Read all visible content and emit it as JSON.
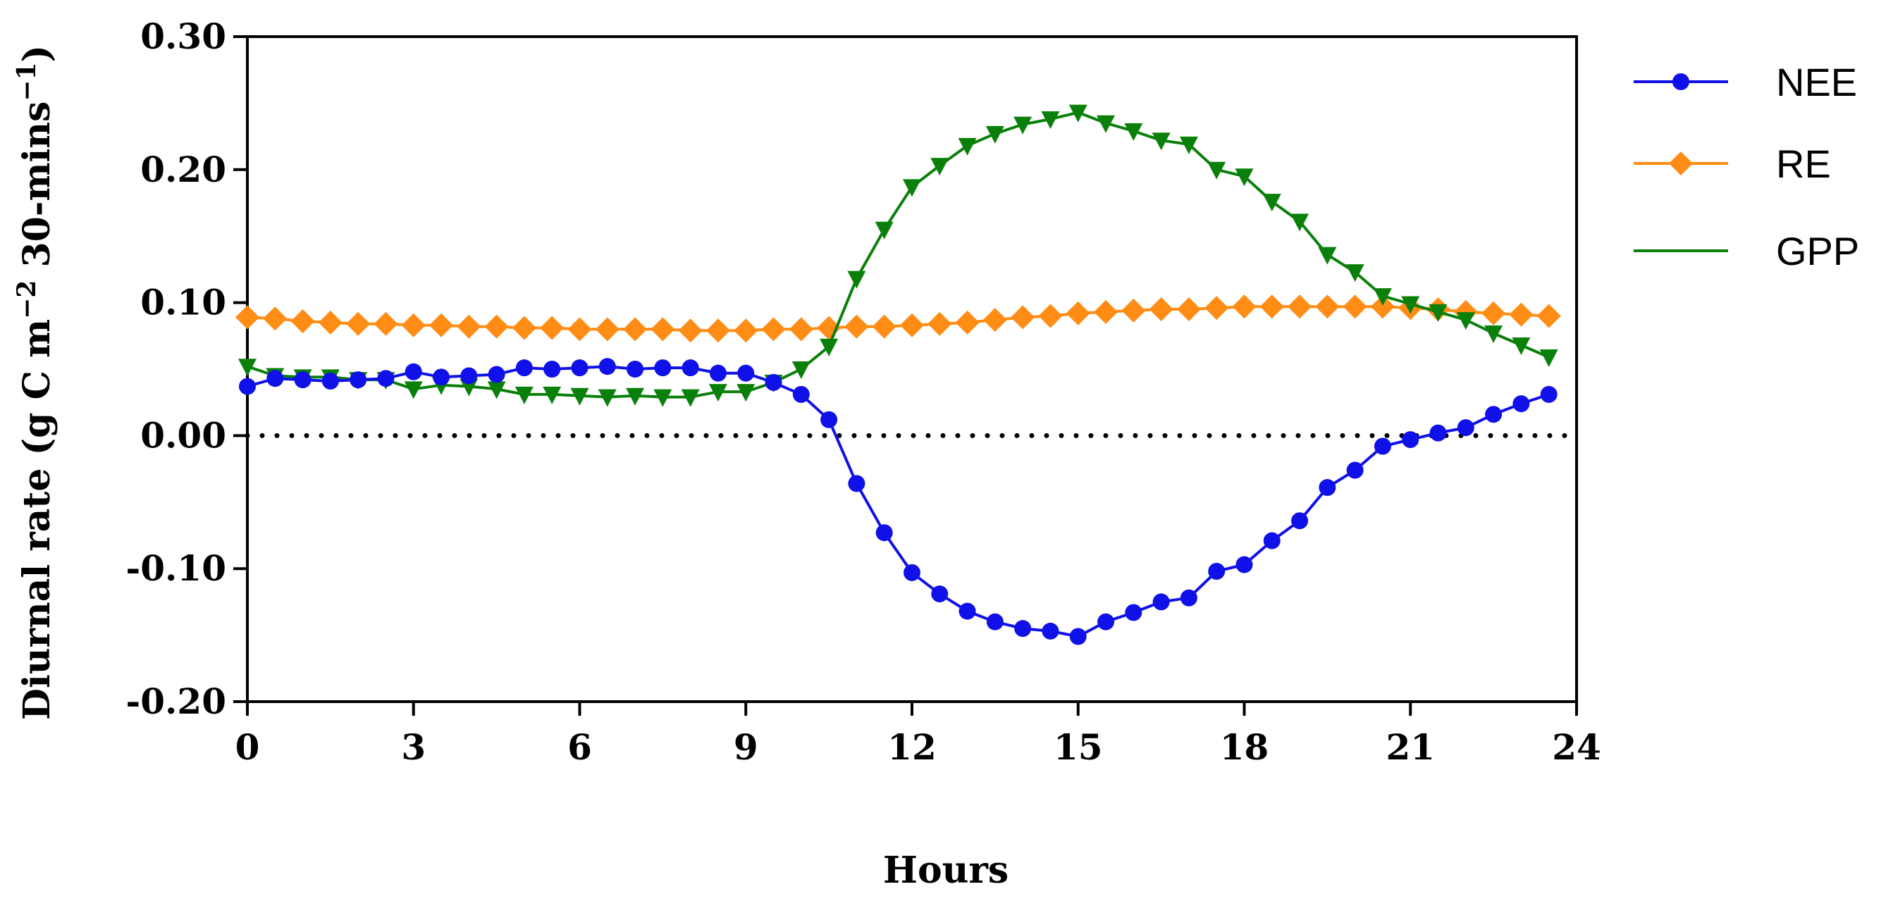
{
  "chart_data": {
    "type": "line",
    "title": "",
    "xlabel": "Hours",
    "ylabel_main": "Diurnal rate (g C m",
    "ylabel_exp1": "−2",
    "ylabel_mid": " 30-mins",
    "ylabel_exp2": "−1",
    "ylabel_end": ")",
    "xlim": [
      0,
      24
    ],
    "ylim": [
      -0.2,
      0.3
    ],
    "xticks": [
      0,
      3,
      6,
      9,
      12,
      15,
      18,
      21,
      24
    ],
    "xtick_labels": [
      "0",
      "3",
      "6",
      "9",
      "12",
      "15",
      "18",
      "21",
      "24"
    ],
    "yticks": [
      -0.2,
      -0.1,
      0.0,
      0.1,
      0.2,
      0.3
    ],
    "ytick_labels": [
      "-0.20",
      "-0.10",
      "0.00",
      "0.10",
      "0.20",
      "0.30"
    ],
    "reference_line": 0.0,
    "legend_position": "right",
    "x": [
      0,
      0.5,
      1,
      1.5,
      2,
      2.5,
      3,
      3.5,
      4,
      4.5,
      5,
      5.5,
      6,
      6.5,
      7,
      7.5,
      8,
      8.5,
      9,
      9.5,
      10,
      10.5,
      11,
      11.5,
      12,
      12.5,
      13,
      13.5,
      14,
      14.5,
      15,
      15.5,
      16,
      16.5,
      17,
      17.5,
      18,
      18.5,
      19,
      19.5,
      20,
      20.5,
      21,
      21.5,
      22,
      22.5,
      23,
      23.5
    ],
    "series": [
      {
        "name": "NEE",
        "color": "#1010e8",
        "marker": "circle",
        "values": [
          0.037,
          0.043,
          0.042,
          0.041,
          0.042,
          0.043,
          0.048,
          0.044,
          0.045,
          0.046,
          0.051,
          0.05,
          0.051,
          0.052,
          0.05,
          0.051,
          0.051,
          0.047,
          0.047,
          0.04,
          0.031,
          0.012,
          -0.036,
          -0.073,
          -0.103,
          -0.119,
          -0.132,
          -0.14,
          -0.145,
          -0.147,
          -0.151,
          -0.14,
          -0.133,
          -0.125,
          -0.122,
          -0.102,
          -0.097,
          -0.079,
          -0.064,
          -0.039,
          -0.026,
          -0.008,
          -0.003,
          0.002,
          0.006,
          0.016,
          0.024,
          0.031
        ]
      },
      {
        "name": "RE",
        "color": "#ff8c14",
        "marker": "diamond",
        "values": [
          0.089,
          0.088,
          0.086,
          0.085,
          0.084,
          0.084,
          0.083,
          0.083,
          0.082,
          0.082,
          0.081,
          0.081,
          0.08,
          0.08,
          0.08,
          0.08,
          0.079,
          0.079,
          0.079,
          0.08,
          0.08,
          0.081,
          0.082,
          0.082,
          0.083,
          0.084,
          0.085,
          0.087,
          0.089,
          0.09,
          0.092,
          0.093,
          0.094,
          0.095,
          0.095,
          0.096,
          0.097,
          0.097,
          0.097,
          0.097,
          0.097,
          0.097,
          0.096,
          0.095,
          0.093,
          0.092,
          0.091,
          0.09
        ]
      },
      {
        "name": "GPP",
        "color": "#0a800a",
        "marker": "triangle-down",
        "values": [
          0.052,
          0.045,
          0.044,
          0.044,
          0.042,
          0.042,
          0.035,
          0.038,
          0.037,
          0.035,
          0.031,
          0.031,
          0.03,
          0.029,
          0.03,
          0.029,
          0.029,
          0.033,
          0.033,
          0.04,
          0.05,
          0.067,
          0.118,
          0.155,
          0.187,
          0.203,
          0.218,
          0.227,
          0.234,
          0.238,
          0.243,
          0.235,
          0.229,
          0.222,
          0.219,
          0.2,
          0.195,
          0.176,
          0.161,
          0.136,
          0.123,
          0.105,
          0.099,
          0.093,
          0.087,
          0.077,
          0.068,
          0.059
        ]
      }
    ]
  }
}
